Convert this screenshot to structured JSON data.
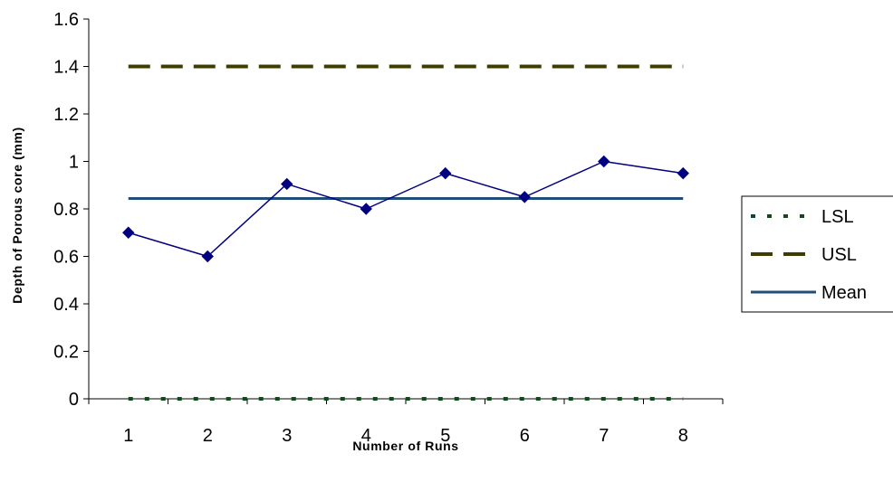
{
  "chart_data": {
    "type": "line",
    "title": "",
    "xlabel": "Number of Runs",
    "ylabel": "Depth of Porous core (mm)",
    "categories": [
      "1",
      "2",
      "3",
      "4",
      "5",
      "6",
      "7",
      "8"
    ],
    "ylim": [
      0,
      1.6
    ],
    "yticks": [
      "0",
      "0.2",
      "0.4",
      "0.6",
      "0.8",
      "1",
      "1.2",
      "1.4",
      "1.6"
    ],
    "grid": false,
    "legend_position": "right",
    "series": [
      {
        "name": "",
        "values": [
          0.7,
          0.6,
          0.905,
          0.8,
          0.95,
          0.85,
          1.0,
          0.95
        ],
        "color": "#000080",
        "style": "line-diamond"
      },
      {
        "name": "LSL",
        "values": [
          0,
          0,
          0,
          0,
          0,
          0,
          0,
          0
        ],
        "color": "#0b4d1a",
        "style": "dotted"
      },
      {
        "name": "USL",
        "values": [
          1.4,
          1.4,
          1.4,
          1.4,
          1.4,
          1.4,
          1.4,
          1.4
        ],
        "color": "#3d3d00",
        "style": "dashed"
      },
      {
        "name": "Mean",
        "values": [
          0.844,
          0.844,
          0.844,
          0.844,
          0.844,
          0.844,
          0.844,
          0.844
        ],
        "color": "#1f4e79",
        "style": "solid"
      }
    ]
  }
}
